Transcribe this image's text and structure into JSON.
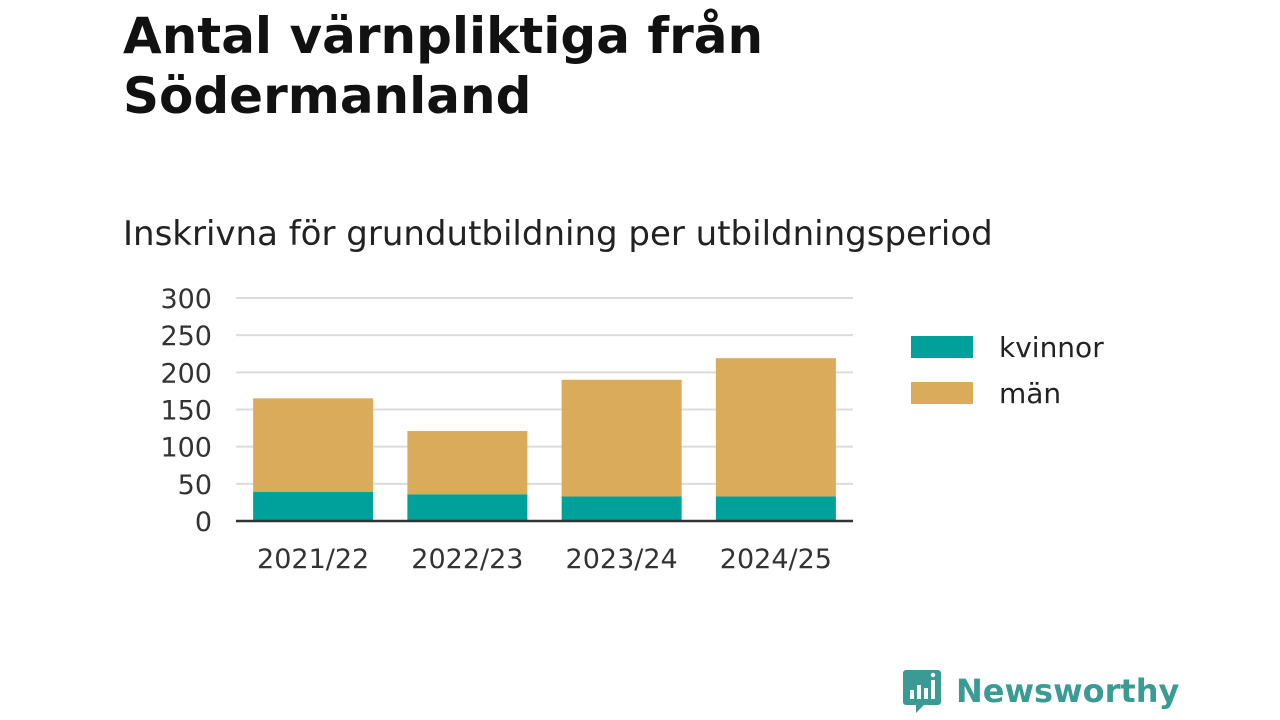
{
  "header": {
    "title": "Antal värnpliktiga från Södermanland",
    "subtitle": "Inskrivna för grundutbildning per utbildningsperiod"
  },
  "chart_data": {
    "type": "bar",
    "stacked": true,
    "categories": [
      "2021/22",
      "2022/23",
      "2023/24",
      "2024/25"
    ],
    "series": [
      {
        "name": "kvinnor",
        "color": "#00a19a",
        "values": [
          39,
          36,
          33,
          33
        ]
      },
      {
        "name": "män",
        "color": "#d9ab5b",
        "values": [
          126,
          85,
          157,
          186
        ]
      }
    ],
    "ylim": [
      0,
      300
    ],
    "yticks": [
      0,
      50,
      100,
      150,
      200,
      250,
      300
    ],
    "grid": true,
    "legend_position": "right"
  },
  "brand": {
    "name": "Newsworthy",
    "color": "#3a9b95"
  }
}
